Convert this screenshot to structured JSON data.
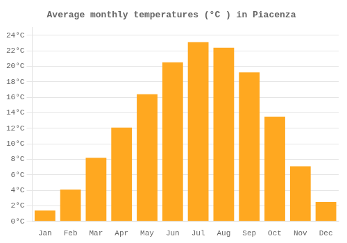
{
  "chart_data": {
    "type": "bar",
    "title": "Average monthly temperatures (°C ) in Piacenza",
    "categories": [
      "Jan",
      "Feb",
      "Mar",
      "Apr",
      "May",
      "Jun",
      "Jul",
      "Aug",
      "Sep",
      "Oct",
      "Nov",
      "Dec"
    ],
    "values": [
      1.4,
      4.1,
      8.2,
      12.1,
      16.4,
      20.5,
      23.1,
      22.4,
      19.2,
      13.5,
      7.1,
      2.5
    ],
    "color": "#FFA820",
    "ylim": [
      0,
      25
    ],
    "yticks": [
      {
        "value": 0,
        "label": "0°C"
      },
      {
        "value": 2,
        "label": "2°C"
      },
      {
        "value": 4,
        "label": "4°C"
      },
      {
        "value": 6,
        "label": "6°C"
      },
      {
        "value": 8,
        "label": "8°C"
      },
      {
        "value": 10,
        "label": "10°C"
      },
      {
        "value": 12,
        "label": "12°C"
      },
      {
        "value": 14,
        "label": "14°C"
      },
      {
        "value": 16,
        "label": "16°C"
      },
      {
        "value": 18,
        "label": "18°C"
      },
      {
        "value": 20,
        "label": "20°C"
      },
      {
        "value": 22,
        "label": "22°C"
      },
      {
        "value": 24,
        "label": "24°C"
      }
    ],
    "grid": true
  }
}
